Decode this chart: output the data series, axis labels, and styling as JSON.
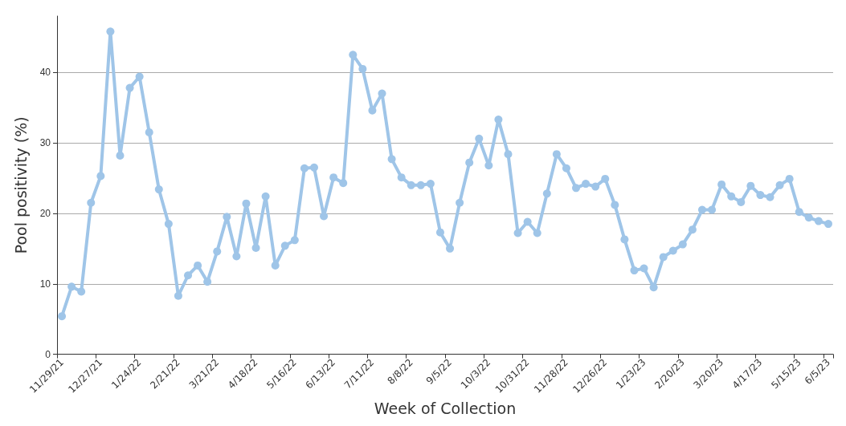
{
  "chart_data": {
    "type": "line",
    "xlabel": "Week of Collection",
    "ylabel": "Pool positivity (%)",
    "categories": [
      "11/29/21",
      null,
      null,
      null,
      "12/27/21",
      null,
      null,
      null,
      "1/24/22",
      null,
      null,
      null,
      "2/21/22",
      null,
      null,
      null,
      "3/21/22",
      null,
      null,
      null,
      "4/18/22",
      null,
      null,
      null,
      "5/16/22",
      null,
      null,
      null,
      "6/13/22",
      null,
      null,
      null,
      "7/11/22",
      null,
      null,
      null,
      "8/8/22",
      null,
      null,
      null,
      "9/5/22",
      null,
      null,
      null,
      "10/3/22",
      null,
      null,
      null,
      "10/31/22",
      null,
      null,
      null,
      "11/28/22",
      null,
      null,
      null,
      "12/26/22",
      null,
      null,
      null,
      "1/23/23",
      null,
      null,
      null,
      "2/20/23",
      null,
      null,
      null,
      "3/20/23",
      null,
      null,
      null,
      "4/17/23",
      null,
      null,
      null,
      "5/15/23",
      null,
      null,
      "6/5/23"
    ],
    "series": [
      {
        "color": "#9fc5e8",
        "values": [
          5.4,
          9.6,
          8.9,
          21.5,
          25.3,
          45.8,
          28.2,
          37.8,
          39.4,
          31.5,
          23.4,
          18.5,
          8.3,
          11.2,
          12.6,
          10.3,
          14.6,
          19.5,
          13.9,
          21.4,
          15.1,
          22.4,
          12.6,
          15.4,
          16.2,
          26.4,
          26.5,
          19.6,
          25.1,
          24.3,
          42.5,
          40.5,
          34.6,
          37.0,
          27.7,
          25.1,
          24.0,
          24.0,
          24.2,
          17.3,
          15.0,
          21.5,
          27.2,
          30.6,
          26.8,
          33.3,
          28.4,
          17.2,
          18.8,
          17.2,
          22.8,
          28.4,
          26.4,
          23.6,
          24.2,
          23.8,
          24.9,
          21.2,
          16.3,
          11.9,
          12.2,
          9.5,
          13.8,
          14.7,
          15.6,
          17.7,
          20.5,
          20.5,
          24.1,
          22.4,
          21.6,
          23.9,
          22.6,
          22.3,
          24.0,
          24.9,
          20.2,
          19.4,
          18.9,
          18.5
        ]
      }
    ],
    "ylim": [
      0,
      48
    ],
    "yticks": [
      0,
      10,
      20,
      30,
      40
    ],
    "grid": "y",
    "marker": "circle",
    "line_style": "solid"
  }
}
